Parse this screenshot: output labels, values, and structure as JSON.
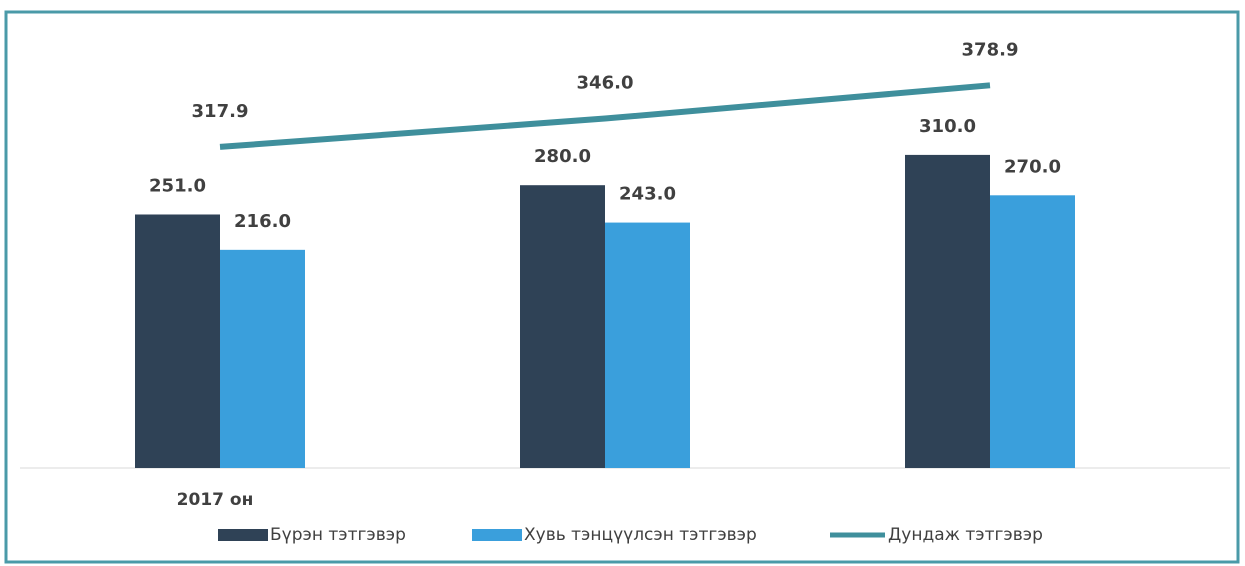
{
  "chart_data": {
    "type": "bar-line",
    "categories": [
      "2017 он",
      null,
      null
    ],
    "series": [
      {
        "name": "Бүрэн тэтгэвэр",
        "type": "bar",
        "color": "#2f4256",
        "values": [
          251.0,
          280.0,
          310.0
        ],
        "value_labels": [
          "251.0",
          "280.0",
          "310.0"
        ]
      },
      {
        "name": "Хувь тэнцүүлсэн тэтгэвэр",
        "type": "bar",
        "color": "#3a9fdc",
        "values": [
          216.0,
          243.0,
          270.0
        ],
        "value_labels": [
          "216.0",
          "243.0",
          "270.0"
        ]
      },
      {
        "name": "Дундаж тэтгэвэр",
        "type": "line",
        "color": "#3f8f9c",
        "values": [
          317.9,
          346.0,
          378.9
        ],
        "value_labels": [
          "317.9",
          "346.0",
          "378.9"
        ]
      }
    ]
  }
}
